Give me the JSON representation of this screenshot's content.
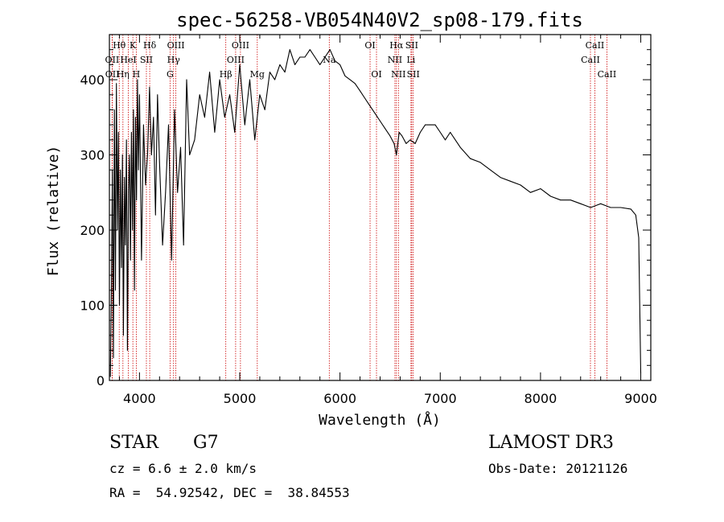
{
  "chart_data": {
    "type": "line",
    "title": "spec-56258-VB054N40V2_sp08-179.fits",
    "xlabel": "Wavelength (Å)",
    "ylabel": "Flux (relative)",
    "xlim": [
      3700,
      9100
    ],
    "ylim": [
      0,
      460
    ],
    "x_ticks": [
      4000,
      5000,
      6000,
      7000,
      8000,
      9000
    ],
    "y_ticks": [
      0,
      100,
      200,
      300,
      400
    ],
    "x_tick_labels": [
      "4000",
      "5000",
      "6000",
      "7000",
      "8000",
      "9000"
    ],
    "y_tick_labels": [
      "0",
      "100",
      "200",
      "300",
      "400"
    ],
    "grid": false,
    "series": [
      {
        "name": "flux",
        "x": [
          3710,
          3720,
          3730,
          3740,
          3750,
          3760,
          3770,
          3780,
          3790,
          3800,
          3810,
          3820,
          3830,
          3840,
          3850,
          3860,
          3870,
          3880,
          3890,
          3900,
          3910,
          3920,
          3930,
          3940,
          3950,
          3960,
          3970,
          3980,
          3990,
          4000,
          4020,
          4040,
          4060,
          4080,
          4100,
          4120,
          4140,
          4160,
          4180,
          4200,
          4230,
          4260,
          4290,
          4320,
          4350,
          4380,
          4410,
          4440,
          4470,
          4500,
          4550,
          4600,
          4650,
          4700,
          4750,
          4800,
          4850,
          4900,
          4950,
          5000,
          5050,
          5100,
          5150,
          5200,
          5250,
          5300,
          5350,
          5400,
          5450,
          5500,
          5550,
          5600,
          5650,
          5700,
          5750,
          5800,
          5850,
          5900,
          5950,
          6000,
          6050,
          6100,
          6150,
          6200,
          6250,
          6300,
          6350,
          6400,
          6450,
          6500,
          6540,
          6563,
          6590,
          6620,
          6660,
          6700,
          6750,
          6800,
          6850,
          6900,
          6950,
          7000,
          7050,
          7100,
          7150,
          7200,
          7300,
          7400,
          7500,
          7600,
          7700,
          7800,
          7900,
          8000,
          8100,
          8200,
          8300,
          8400,
          8500,
          8600,
          8700,
          8800,
          8900,
          8950,
          8980,
          9000
        ],
        "values": [
          5,
          120,
          280,
          30,
          360,
          120,
          395,
          200,
          330,
          100,
          280,
          150,
          300,
          60,
          270,
          180,
          320,
          40,
          250,
          300,
          160,
          330,
          200,
          360,
          120,
          350,
          240,
          400,
          280,
          380,
          160,
          340,
          260,
          300,
          390,
          300,
          350,
          220,
          380,
          290,
          180,
          250,
          340,
          160,
          360,
          250,
          310,
          180,
          400,
          300,
          320,
          380,
          350,
          410,
          330,
          400,
          350,
          380,
          330,
          420,
          340,
          400,
          320,
          380,
          360,
          410,
          400,
          420,
          410,
          440,
          420,
          430,
          430,
          440,
          430,
          420,
          430,
          440,
          425,
          420,
          405,
          400,
          395,
          385,
          375,
          365,
          355,
          345,
          335,
          325,
          315,
          300,
          330,
          325,
          315,
          320,
          315,
          330,
          340,
          340,
          340,
          330,
          320,
          330,
          320,
          310,
          295,
          290,
          280,
          270,
          265,
          260,
          250,
          255,
          245,
          240,
          240,
          235,
          230,
          235,
          230,
          230,
          228,
          220,
          190,
          10
        ]
      }
    ],
    "lines": [
      {
        "name": "Hθ",
        "wl": 3798,
        "row": 1
      },
      {
        "name": "OII",
        "wl": 3727,
        "row": 2
      },
      {
        "name": "OII",
        "wl": 3729,
        "row": 3
      },
      {
        "name": "Hη",
        "wl": 3835,
        "row": 3
      },
      {
        "name": "K",
        "wl": 3934,
        "row": 1
      },
      {
        "name": "HeI",
        "wl": 3889,
        "row": 2
      },
      {
        "name": "H",
        "wl": 3968,
        "row": 3
      },
      {
        "name": "SII",
        "wl": 4069,
        "row": 2
      },
      {
        "name": "Hδ",
        "wl": 4102,
        "row": 1
      },
      {
        "name": "OIII",
        "wl": 4363,
        "row": 1
      },
      {
        "name": "Hγ",
        "wl": 4340,
        "row": 2
      },
      {
        "name": "G",
        "wl": 4305,
        "row": 3
      },
      {
        "name": "Hβ",
        "wl": 4861,
        "row": 3
      },
      {
        "name": "OIII",
        "wl": 4959,
        "row": 2
      },
      {
        "name": "OIII",
        "wl": 5007,
        "row": 1
      },
      {
        "name": "Mg",
        "wl": 5175,
        "row": 3
      },
      {
        "name": "Na",
        "wl": 5893,
        "row": 2
      },
      {
        "name": "OI",
        "wl": 6300,
        "row": 1
      },
      {
        "name": "OI",
        "wl": 6364,
        "row": 3
      },
      {
        "name": "Hα",
        "wl": 6563,
        "row": 1
      },
      {
        "name": "NII",
        "wl": 6548,
        "row": 2
      },
      {
        "name": "NII",
        "wl": 6583,
        "row": 3
      },
      {
        "name": "SII",
        "wl": 6716,
        "row": 1
      },
      {
        "name": "Li",
        "wl": 6708,
        "row": 2
      },
      {
        "name": "SII",
        "wl": 6731,
        "row": 3
      },
      {
        "name": "CaII",
        "wl": 8542,
        "row": 1
      },
      {
        "name": "CaII",
        "wl": 8498,
        "row": 2
      },
      {
        "name": "CaII",
        "wl": 8662,
        "row": 3
      }
    ]
  },
  "info": {
    "class": "STAR",
    "subclass": "G7",
    "survey": "LAMOST DR3",
    "cz": "cz = 6.6 ± 2.0 km/s",
    "obs_date": "Obs-Date: 20121126",
    "radec": "RA =  54.92542, DEC =  38.84553"
  },
  "colors": {
    "line_marker": "#cc0000",
    "spectrum": "#000000",
    "axis": "#000000"
  }
}
